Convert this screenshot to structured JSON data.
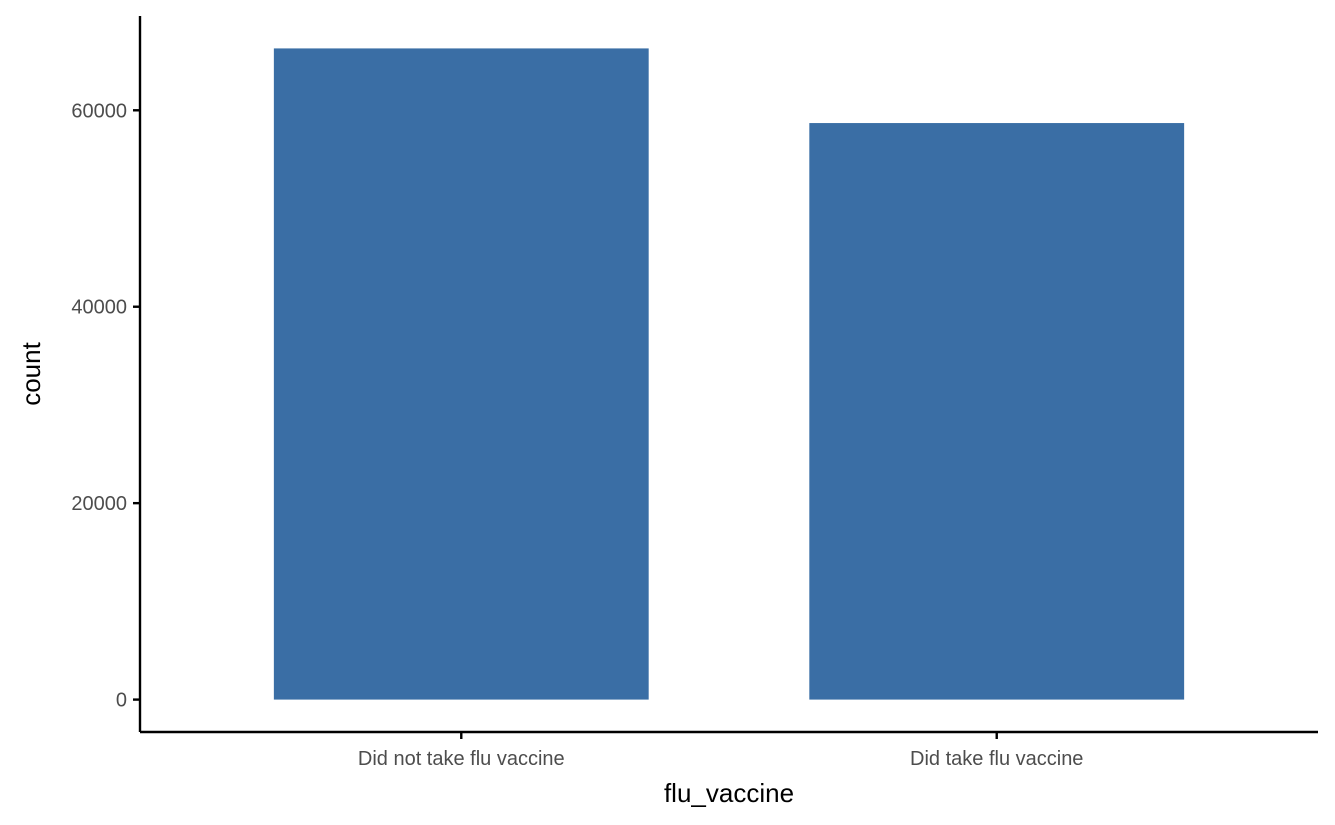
{
  "chart_data": {
    "type": "bar",
    "categories": [
      "Did not take flu vaccine",
      "Did take flu vaccine"
    ],
    "values": [
      66300,
      58700
    ],
    "xlabel": "flu_vaccine",
    "ylabel": "count",
    "yticks": [
      0,
      20000,
      40000,
      60000
    ],
    "ytick_labels": [
      "0",
      "20000",
      "40000",
      "60000"
    ],
    "ylim": [
      -3300,
      69600
    ],
    "grid": false,
    "legend": "none",
    "colors": {
      "bar": "#3A6EA5",
      "axis": "#000000",
      "tick_text": "#4D4D4D",
      "background": "#FFFFFF"
    }
  }
}
